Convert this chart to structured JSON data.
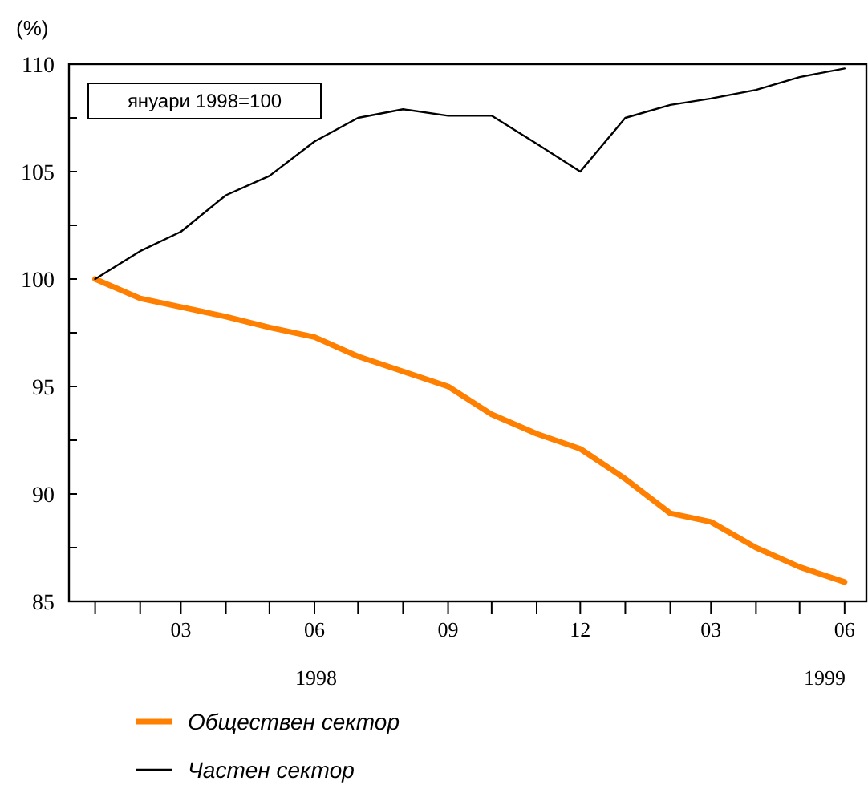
{
  "chart_data": {
    "type": "line",
    "ylabel": "(%)",
    "annotations": [
      "януари 1998=100",
      "1998",
      "1999"
    ],
    "x": [
      "1998-01",
      "1998-02",
      "1998-03",
      "1998-04",
      "1998-05",
      "1998-06",
      "1998-07",
      "1998-08",
      "1998-09",
      "1998-10",
      "1998-11",
      "1998-12",
      "1999-01",
      "1999-02",
      "1999-03",
      "1999-04",
      "1999-05",
      "1999-06"
    ],
    "series": [
      {
        "name": "Обществен сектор",
        "color": "#ff7f00",
        "values": [
          100,
          99.1,
          98.7,
          98.25,
          97.75,
          97.3,
          96.4,
          95.7,
          95.0,
          93.7,
          92.8,
          92.1,
          90.7,
          89.1,
          88.7,
          87.5,
          86.6,
          85.9
        ]
      },
      {
        "name": "Частен сектор",
        "color": "#000000",
        "values": [
          100,
          101.3,
          102.2,
          103.9,
          104.8,
          106.4,
          107.5,
          107.9,
          107.6,
          107.6,
          106.3,
          105.0,
          107.5,
          108.1,
          108.4,
          108.8,
          109.4,
          109.8
        ]
      }
    ],
    "xlim": [
      "1997-12-14",
      "1999-06-16"
    ],
    "xticks": [
      {
        "value": "1998-01",
        "label": null
      },
      {
        "value": "1998-02",
        "label": null
      },
      {
        "value": "1998-03",
        "label": "03"
      },
      {
        "value": "1998-04",
        "label": null
      },
      {
        "value": "1998-05",
        "label": null
      },
      {
        "value": "1998-06",
        "label": "06"
      },
      {
        "value": "1998-07",
        "label": null
      },
      {
        "value": "1998-08",
        "label": null
      },
      {
        "value": "1998-09",
        "label": "09"
      },
      {
        "value": "1998-10",
        "label": null
      },
      {
        "value": "1998-11",
        "label": null
      },
      {
        "value": "1998-12",
        "label": "12"
      },
      {
        "value": "1999-01",
        "label": null
      },
      {
        "value": "1999-02",
        "label": null
      },
      {
        "value": "1999-03",
        "label": "03"
      },
      {
        "value": "1999-04",
        "label": null
      },
      {
        "value": "1999-05",
        "label": null
      },
      {
        "value": "1999-06",
        "label": "06"
      }
    ],
    "ylim": [
      85,
      110
    ],
    "yticks": [
      85,
      {
        "value": 87.5,
        "label": null
      },
      90,
      {
        "value": 92.5,
        "label": null
      },
      95,
      {
        "value": 97.5,
        "label": null
      },
      100,
      {
        "value": 102.5,
        "label": null
      },
      105,
      {
        "value": 107.5,
        "label": null
      },
      110
    ],
    "grid": false,
    "legend": "bottom",
    "marker": "none",
    "line_style": "solid"
  }
}
